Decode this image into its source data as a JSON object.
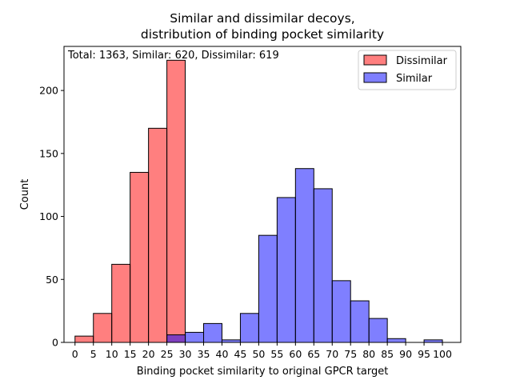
{
  "chart_data": {
    "type": "bar",
    "title_line1": "Similar and dissimilar decoys,",
    "title_line2": "distribution of binding pocket similarity",
    "annotation": "Total: 1363, Similar: 620, Dissimilar: 619",
    "xlabel": "Binding pocket similarity to original GPCR target",
    "ylabel": "Count",
    "xlim": [
      -3,
      105
    ],
    "ylim": [
      0,
      235
    ],
    "xticks": [
      0,
      5,
      10,
      15,
      20,
      25,
      30,
      35,
      40,
      45,
      50,
      55,
      60,
      65,
      70,
      75,
      80,
      85,
      90,
      95,
      100
    ],
    "yticks": [
      0,
      50,
      100,
      150,
      200
    ],
    "bin_width": 5,
    "legend_position": "upper right",
    "series": [
      {
        "name": "Dissimilar",
        "color": "#ff0000",
        "opacity": 0.5,
        "bins": [
          {
            "x": 0,
            "count": 5
          },
          {
            "x": 5,
            "count": 23
          },
          {
            "x": 10,
            "count": 62
          },
          {
            "x": 15,
            "count": 135
          },
          {
            "x": 20,
            "count": 170
          },
          {
            "x": 25,
            "count": 224
          }
        ]
      },
      {
        "name": "Similar",
        "color": "#0000ff",
        "opacity": 0.5,
        "bins": [
          {
            "x": 25,
            "count": 6
          },
          {
            "x": 30,
            "count": 8
          },
          {
            "x": 35,
            "count": 15
          },
          {
            "x": 40,
            "count": 2
          },
          {
            "x": 45,
            "count": 23
          },
          {
            "x": 50,
            "count": 85
          },
          {
            "x": 55,
            "count": 115
          },
          {
            "x": 60,
            "count": 138
          },
          {
            "x": 65,
            "count": 122
          },
          {
            "x": 70,
            "count": 49
          },
          {
            "x": 75,
            "count": 33
          },
          {
            "x": 80,
            "count": 19
          },
          {
            "x": 85,
            "count": 3
          },
          {
            "x": 95,
            "count": 2
          }
        ]
      }
    ]
  }
}
